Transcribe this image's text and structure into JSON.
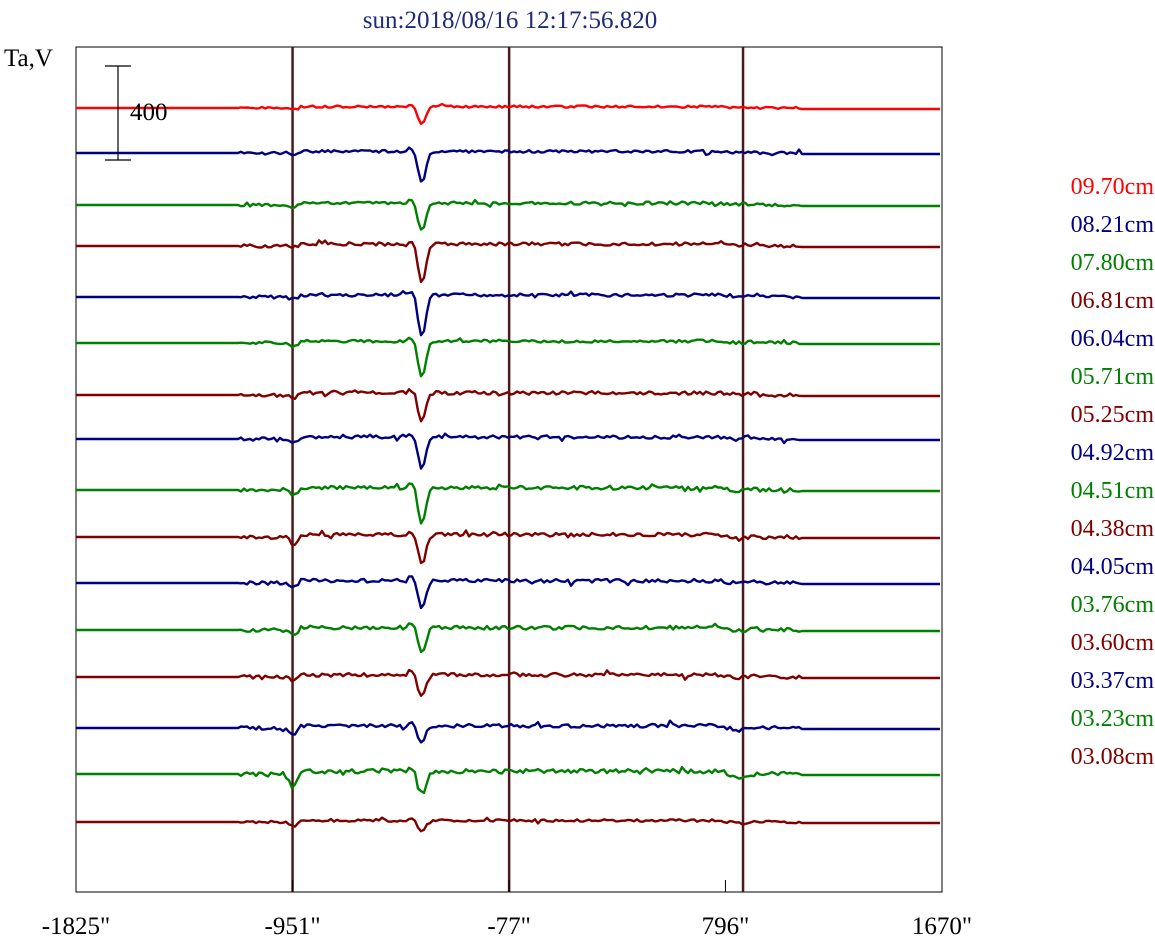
{
  "chart_data": {
    "type": "line",
    "title": "sun:2018/08/16 12:17:56.820",
    "ylabel": "Ta,V",
    "scale_label": "400",
    "scale_value": 400,
    "xlim": [
      -1825,
      1670
    ],
    "x_ticks": [
      {
        "value": -1825,
        "label": "-1825\""
      },
      {
        "value": -951,
        "label": "-951\""
      },
      {
        "value": -77,
        "label": "-77\""
      },
      {
        "value": 796,
        "label": "796\""
      },
      {
        "value": 1670,
        "label": "1670\""
      }
    ],
    "limb_lines": [
      -951,
      -77,
      867
    ],
    "series": [
      {
        "name": "09.70cm",
        "color": "#ff0000",
        "offset_y": 108,
        "amp": 0.55,
        "dip": 18,
        "limbdip": 2
      },
      {
        "name": "08.21cm",
        "color": "#000080",
        "offset_y": 153,
        "amp": 0.65,
        "dip": 32,
        "limbdip": 2
      },
      {
        "name": "07.80cm",
        "color": "#008000",
        "offset_y": 205,
        "amp": 0.75,
        "dip": 28,
        "limbdip": 2
      },
      {
        "name": "06.81cm",
        "color": "#800000",
        "offset_y": 246,
        "amp": 0.8,
        "dip": 40,
        "limbdip": 2
      },
      {
        "name": "06.04cm",
        "color": "#000080",
        "offset_y": 297,
        "amp": 0.8,
        "dip": 42,
        "limbdip": 2
      },
      {
        "name": "05.71cm",
        "color": "#008000",
        "offset_y": 343,
        "amp": 0.75,
        "dip": 36,
        "limbdip": 3
      },
      {
        "name": "05.25cm",
        "color": "#800000",
        "offset_y": 395,
        "amp": 0.85,
        "dip": 28,
        "limbdip": 3
      },
      {
        "name": "04.92cm",
        "color": "#000080",
        "offset_y": 439,
        "amp": 0.8,
        "dip": 32,
        "limbdip": 5
      },
      {
        "name": "04.51cm",
        "color": "#008000",
        "offset_y": 490,
        "amp": 0.9,
        "dip": 36,
        "limbdip": 6
      },
      {
        "name": "04.38cm",
        "color": "#800000",
        "offset_y": 537,
        "amp": 0.95,
        "dip": 30,
        "limbdip": 8
      },
      {
        "name": "04.05cm",
        "color": "#000080",
        "offset_y": 583,
        "amp": 0.9,
        "dip": 28,
        "limbdip": 5
      },
      {
        "name": "03.76cm",
        "color": "#008000",
        "offset_y": 630,
        "amp": 0.95,
        "dip": 26,
        "limbdip": 6
      },
      {
        "name": "03.60cm",
        "color": "#800000",
        "offset_y": 677,
        "amp": 0.85,
        "dip": 22,
        "limbdip": 5
      },
      {
        "name": "03.37cm",
        "color": "#000080",
        "offset_y": 728,
        "amp": 0.9,
        "dip": 18,
        "limbdip": 8
      },
      {
        "name": "03.23cm",
        "color": "#008000",
        "offset_y": 774,
        "amp": 1.1,
        "dip": 26,
        "limbdip": 16
      },
      {
        "name": "03.08cm",
        "color": "#800000",
        "offset_y": 822,
        "amp": 0.6,
        "dip": 12,
        "limbdip": 5
      }
    ],
    "legend_position": "right",
    "colors": {
      "red": "#ff0000",
      "blue": "#000080",
      "green": "#008000",
      "brown": "#800000",
      "limb_line": "#4a1a1a",
      "title": "#1f2a7a"
    }
  }
}
